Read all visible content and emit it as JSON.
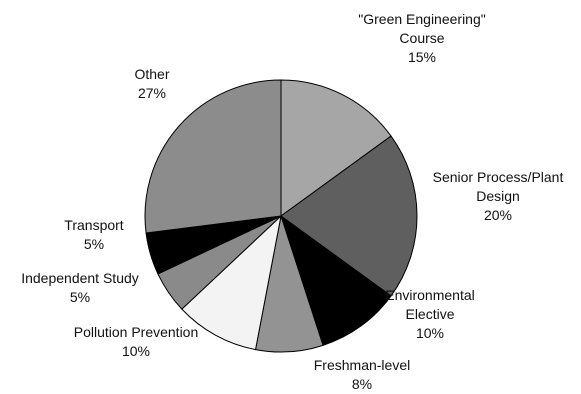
{
  "chart_data": {
    "type": "pie",
    "title": "",
    "slices": [
      {
        "label_lines": [
          "\"Green Engineering\"",
          "Course"
        ],
        "pct_text": "15%",
        "value": 15,
        "color": "#a6a6a6"
      },
      {
        "label_lines": [
          "Senior Process/Plant",
          "Design"
        ],
        "pct_text": "20%",
        "value": 20,
        "color": "#5f5f5f"
      },
      {
        "label_lines": [
          "Environmental",
          "Elective"
        ],
        "pct_text": "10%",
        "value": 10,
        "color": "#000000"
      },
      {
        "label_lines": [
          "Freshman-level"
        ],
        "pct_text": "8%",
        "value": 8,
        "color": "#939393"
      },
      {
        "label_lines": [
          "Pollution Prevention"
        ],
        "pct_text": "10%",
        "value": 10,
        "color": "#f3f3f3"
      },
      {
        "label_lines": [
          "Independent Study"
        ],
        "pct_text": "5%",
        "value": 5,
        "color": "#8a8a8a"
      },
      {
        "label_lines": [
          "Transport"
        ],
        "pct_text": "5%",
        "value": 5,
        "color": "#000000"
      },
      {
        "label_lines": [
          "Other"
        ],
        "pct_text": "27%",
        "value": 27,
        "color": "#8c8c8c"
      }
    ],
    "start": "12 o'clock",
    "direction": "clockwise",
    "legend": "none (labels beside slices)"
  }
}
